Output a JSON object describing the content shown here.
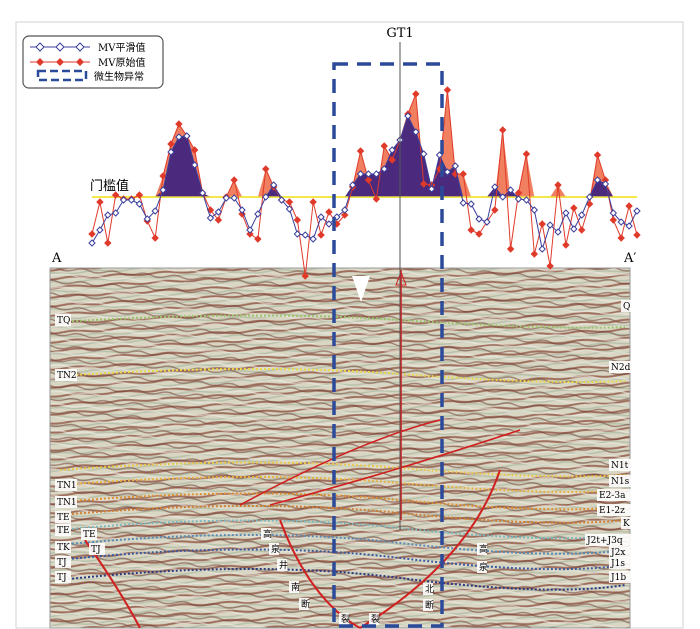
{
  "chart_data": {
    "type": "line",
    "title": "",
    "well_label": "GT1",
    "section_start_label": "A",
    "section_end_label": "A′",
    "threshold_label": "门槛值",
    "threshold": 0,
    "legend": {
      "placement": "top-left",
      "items": [
        {
          "name": "MV平滑值",
          "color": "#3b3f9a",
          "marker": "open-diamond"
        },
        {
          "name": "MV原始值",
          "color": "#e03a2a",
          "marker": "filled-diamond"
        },
        {
          "name": "微生物异常",
          "color": "#2c4a9a",
          "marker": "dashed-box"
        }
      ]
    },
    "series": [
      {
        "name": "MV平滑值",
        "color": "#3b3f9a",
        "fill": "#4b2a7e",
        "values": [
          -46,
          -33,
          -18,
          -16,
          -3,
          -3,
          -7,
          -22,
          -14,
          7,
          45,
          60,
          61,
          32,
          4,
          -21,
          -15,
          -1,
          -1,
          -13,
          -33,
          -17,
          0,
          12,
          -3,
          -12,
          -37,
          -38,
          -42,
          -20,
          -27,
          -20,
          -13,
          12,
          23,
          23,
          23,
          28,
          47,
          57,
          81,
          65,
          43,
          8,
          42,
          25,
          31,
          -6,
          -7,
          -22,
          -25,
          10,
          0,
          7,
          -2,
          -3,
          -13,
          -52,
          -28,
          -35,
          -16,
          -32,
          -18,
          0,
          17,
          13,
          -16,
          -25,
          -29,
          -14
        ]
      },
      {
        "name": "MV原始值",
        "color": "#e03a2a",
        "fill": "#f08060",
        "values": [
          -37,
          -5,
          -46,
          2,
          -2,
          -2,
          2,
          -24,
          -41,
          21,
          53,
          73,
          61,
          47,
          4,
          -13,
          -23,
          0,
          17,
          -17,
          -37,
          -42,
          28,
          10,
          -3,
          -5,
          -23,
          -79,
          -5,
          -38,
          -15,
          -27,
          -18,
          10,
          46,
          17,
          -2,
          51,
          37,
          57,
          83,
          103,
          13,
          12,
          28,
          107,
          23,
          23,
          -33,
          -37,
          -25,
          -13,
          67,
          -52,
          4,
          43,
          -57,
          -27,
          -69,
          12,
          -48,
          -11,
          -33,
          -7,
          42,
          17,
          -23,
          -41,
          -9,
          -38
        ]
      }
    ],
    "anomaly_box": {
      "color": "#2c4a9a",
      "style": "dashed"
    },
    "grid": false,
    "axes_visible": false
  },
  "section": {
    "left_horizons": [
      "TQ",
      "TN2",
      "TN1",
      "TN1",
      "TE",
      "TE",
      "TK",
      "TJ",
      "TJ",
      "TJ"
    ],
    "left_horizons_extra": [
      "TE",
      "TJ"
    ],
    "right_formations": [
      "Q",
      "N2d",
      "N1t",
      "N1s",
      "E2-3a",
      "E1-2z",
      "K",
      "J2t+J3q",
      "J2x",
      "J1s",
      "J1b"
    ],
    "fault_labels": {
      "south": [
        "高",
        "泉",
        "井",
        "南",
        "断",
        "裂"
      ],
      "north": [
        "高",
        "泉",
        "北",
        "断",
        "裂"
      ]
    }
  }
}
